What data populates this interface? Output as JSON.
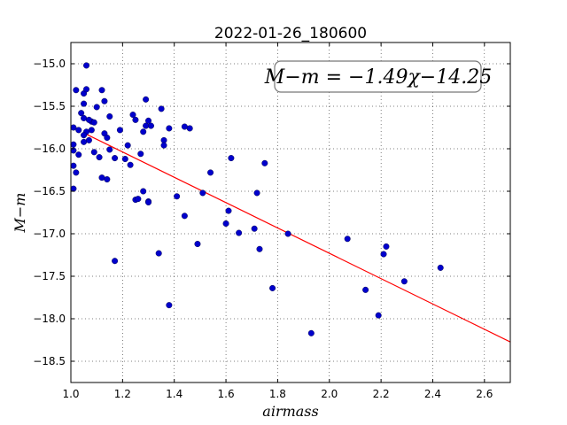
{
  "chart_data": {
    "type": "scatter",
    "title": "2022-01-26_180600",
    "xlabel": "airmass",
    "ylabel": "M−m",
    "xlim": [
      1.0,
      2.7
    ],
    "ylim": [
      -18.75,
      -14.75
    ],
    "y_inverted": true,
    "grid": true,
    "xticks": [
      1.0,
      1.2,
      1.4,
      1.6,
      1.8,
      2.0,
      2.2,
      2.4,
      2.6
    ],
    "xtick_labels": [
      "1.0",
      "1.2",
      "1.4",
      "1.6",
      "1.8",
      "2.0",
      "2.2",
      "2.4",
      "2.6"
    ],
    "yticks": [
      -15.0,
      -15.5,
      -16.0,
      -16.5,
      -17.0,
      -17.5,
      -18.0,
      -18.5
    ],
    "ytick_labels": [
      "−15.0",
      "−15.5",
      "−16.0",
      "−16.5",
      "−17.0",
      "−17.5",
      "−18.0",
      "−18.5"
    ],
    "annotation": "M−m = −1.49χ−14.25",
    "fit": {
      "slope": -1.49,
      "intercept": -14.25,
      "x_range": [
        1.05,
        2.7
      ],
      "color": "#ff0000"
    },
    "point_color": "#0000cc",
    "points": [
      [
        1.06,
        -15.02
      ],
      [
        1.02,
        -15.31
      ],
      [
        1.05,
        -15.35
      ],
      [
        1.06,
        -15.3
      ],
      [
        1.12,
        -15.31
      ],
      [
        1.05,
        -15.47
      ],
      [
        1.1,
        -15.51
      ],
      [
        1.13,
        -15.44
      ],
      [
        1.04,
        -15.58
      ],
      [
        1.05,
        -15.64
      ],
      [
        1.08,
        -15.68
      ],
      [
        1.09,
        -15.69
      ],
      [
        1.07,
        -15.66
      ],
      [
        1.01,
        -15.75
      ],
      [
        1.03,
        -15.78
      ],
      [
        1.06,
        -15.8
      ],
      [
        1.08,
        -15.78
      ],
      [
        1.05,
        -15.84
      ],
      [
        1.07,
        -15.9
      ],
      [
        1.05,
        -15.92
      ],
      [
        1.01,
        -15.95
      ],
      [
        1.01,
        -16.02
      ],
      [
        1.03,
        -16.07
      ],
      [
        1.09,
        -16.04
      ],
      [
        1.11,
        -16.1
      ],
      [
        1.13,
        -15.82
      ],
      [
        1.15,
        -15.62
      ],
      [
        1.14,
        -15.87
      ],
      [
        1.15,
        -16.01
      ],
      [
        1.17,
        -16.11
      ],
      [
        1.01,
        -16.2
      ],
      [
        1.02,
        -16.28
      ],
      [
        1.01,
        -16.47
      ],
      [
        1.12,
        -16.34
      ],
      [
        1.14,
        -16.36
      ],
      [
        1.19,
        -15.78
      ],
      [
        1.22,
        -15.96
      ],
      [
        1.23,
        -16.19
      ],
      [
        1.21,
        -16.12
      ],
      [
        1.24,
        -15.6
      ],
      [
        1.25,
        -15.66
      ],
      [
        1.27,
        -16.06
      ],
      [
        1.29,
        -15.42
      ],
      [
        1.3,
        -15.67
      ],
      [
        1.29,
        -15.73
      ],
      [
        1.31,
        -15.73
      ],
      [
        1.28,
        -15.8
      ],
      [
        1.28,
        -16.5
      ],
      [
        1.25,
        -16.6
      ],
      [
        1.26,
        -16.59
      ],
      [
        1.3,
        -16.62
      ],
      [
        1.3,
        -16.63
      ],
      [
        1.35,
        -15.53
      ],
      [
        1.36,
        -15.9
      ],
      [
        1.36,
        -15.96
      ],
      [
        1.38,
        -15.76
      ],
      [
        1.44,
        -15.74
      ],
      [
        1.46,
        -15.76
      ],
      [
        1.41,
        -16.56
      ],
      [
        1.44,
        -16.79
      ],
      [
        1.17,
        -17.32
      ],
      [
        1.34,
        -17.23
      ],
      [
        1.38,
        -17.84
      ],
      [
        1.49,
        -17.12
      ],
      [
        1.51,
        -16.52
      ],
      [
        1.54,
        -16.28
      ],
      [
        1.6,
        -16.88
      ],
      [
        1.61,
        -16.73
      ],
      [
        1.62,
        -16.11
      ],
      [
        1.65,
        -16.99
      ],
      [
        1.71,
        -16.94
      ],
      [
        1.72,
        -16.52
      ],
      [
        1.73,
        -17.18
      ],
      [
        1.75,
        -16.17
      ],
      [
        1.78,
        -17.64
      ],
      [
        1.84,
        -17.0
      ],
      [
        1.93,
        -18.17
      ],
      [
        2.07,
        -17.06
      ],
      [
        2.14,
        -17.66
      ],
      [
        2.19,
        -17.96
      ],
      [
        2.21,
        -17.24
      ],
      [
        2.22,
        -17.15
      ],
      [
        2.29,
        -17.56
      ],
      [
        2.43,
        -17.4
      ]
    ]
  }
}
